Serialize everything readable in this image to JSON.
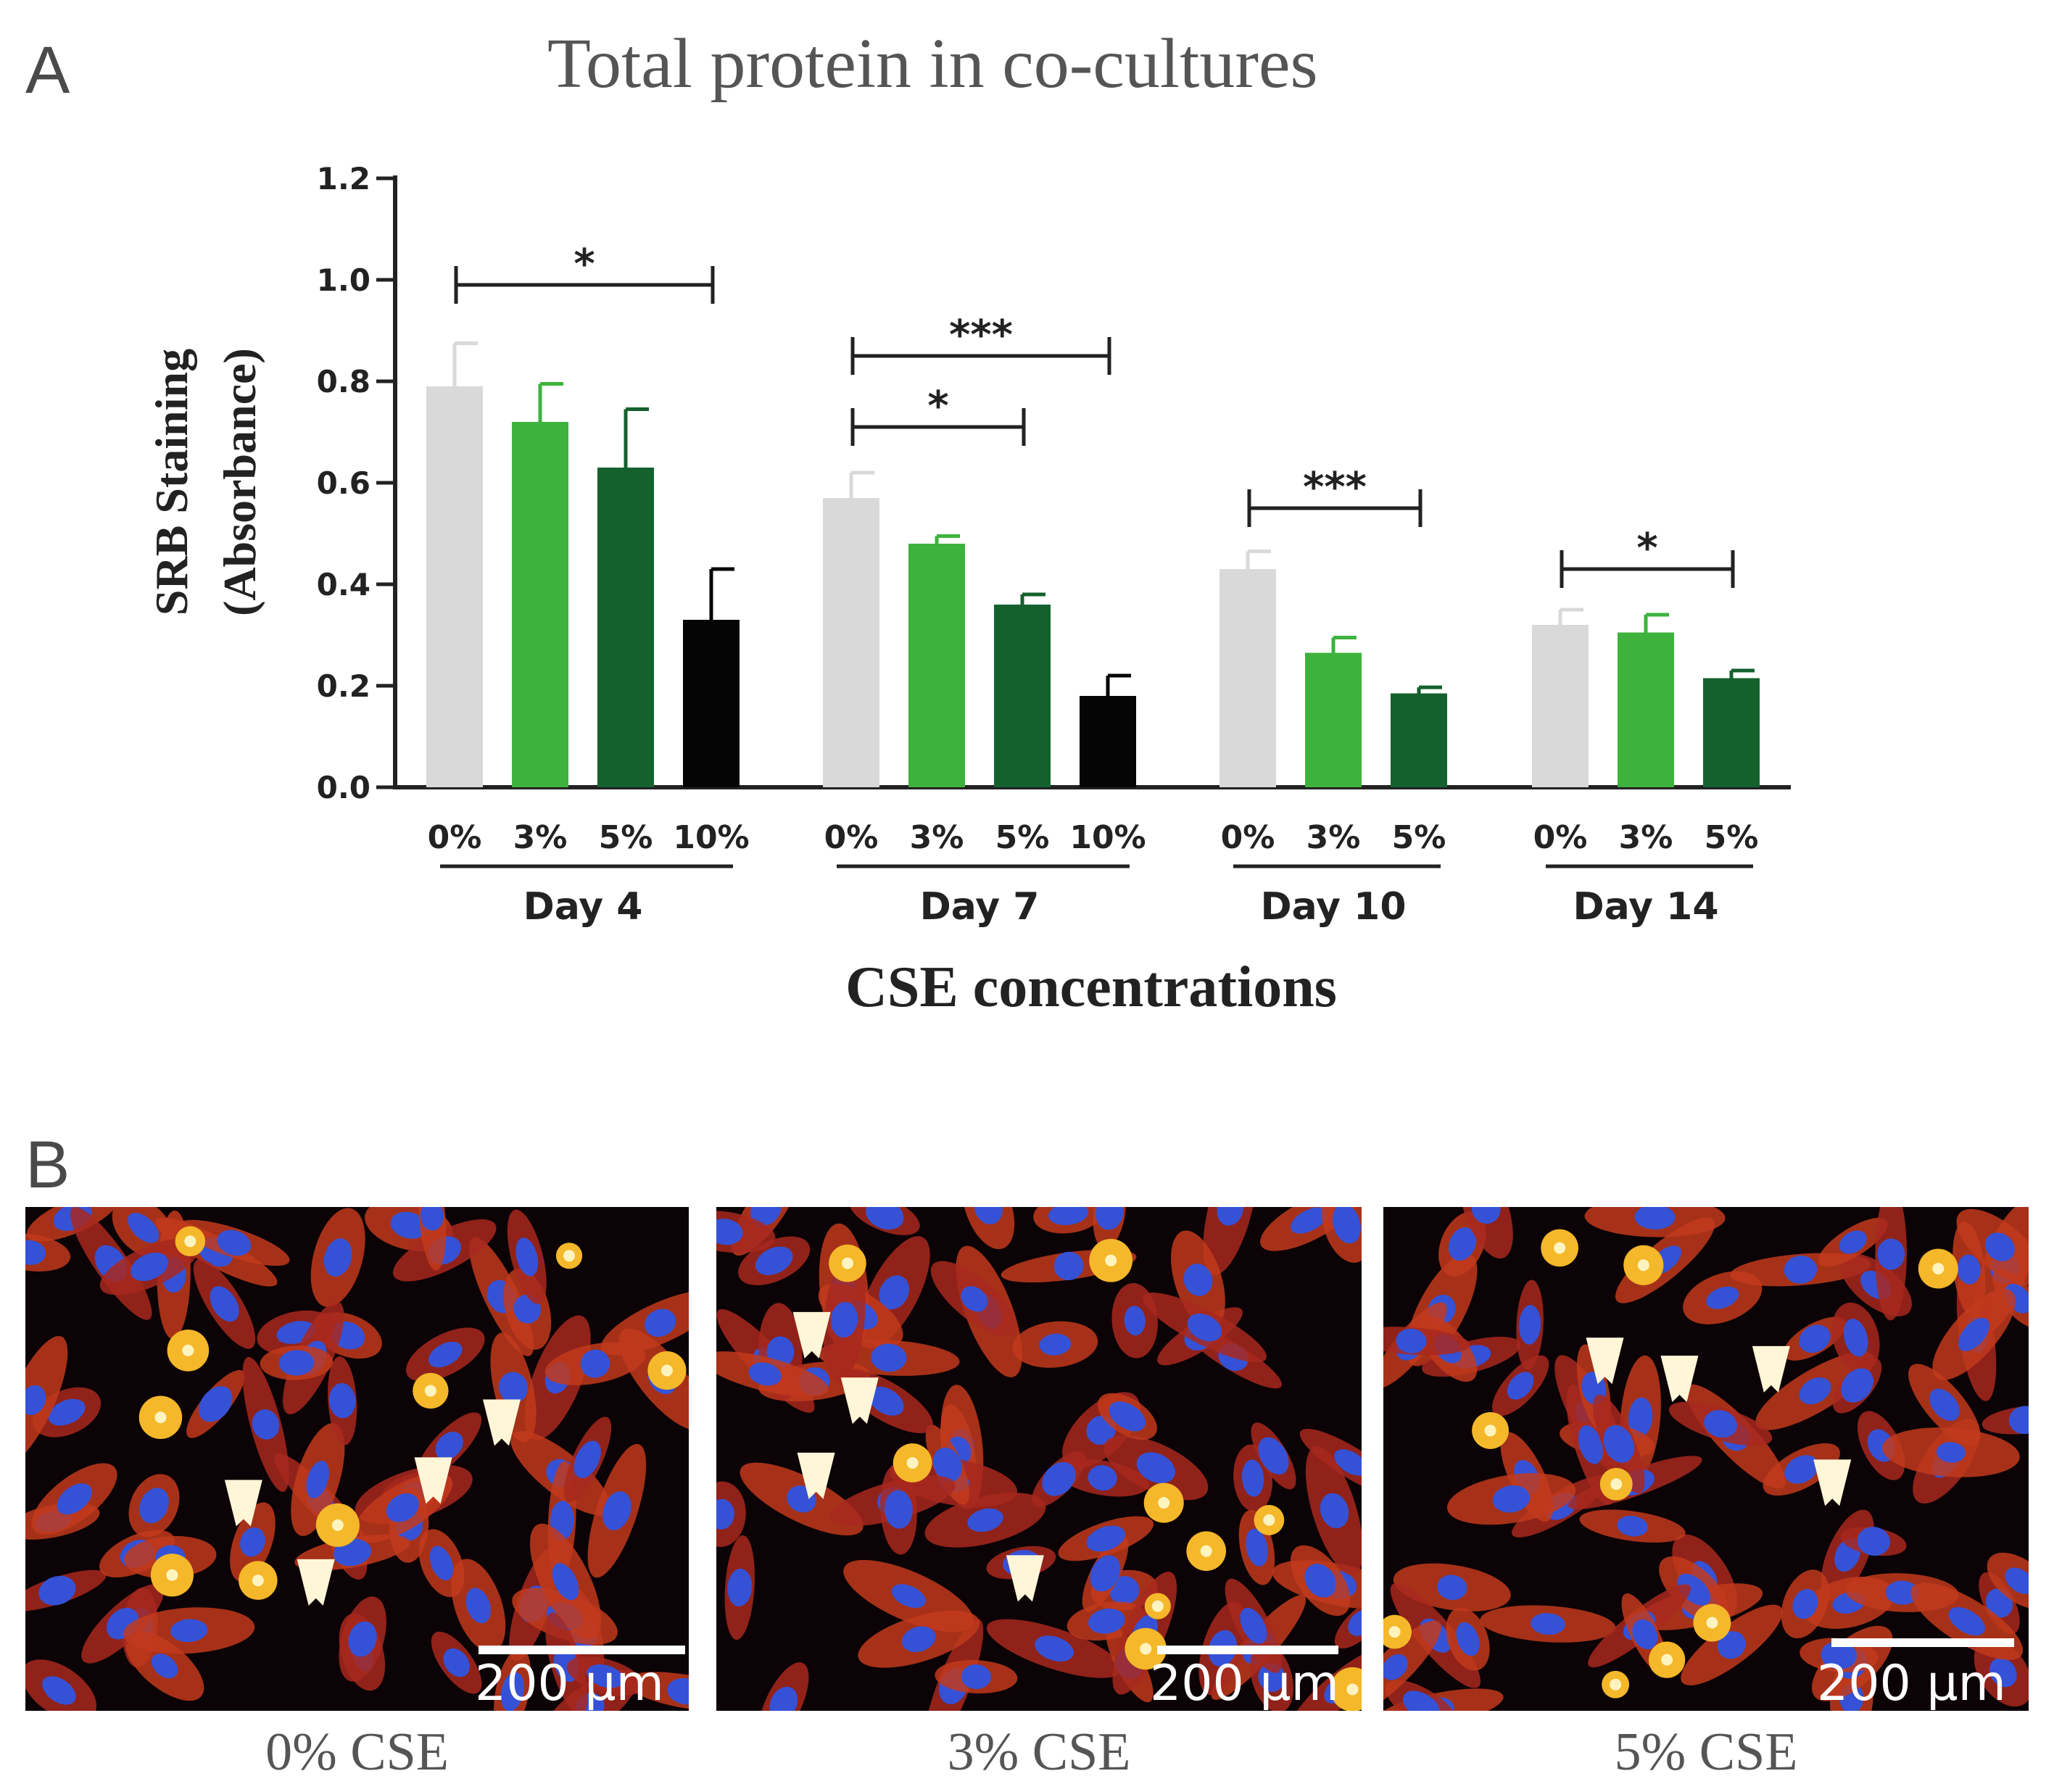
{
  "panel_a_letter": "A",
  "panel_b_letter": "B",
  "chart_data": {
    "type": "bar",
    "title": "Total protein in co-cultures",
    "ylabel_line1": "SRB Staining",
    "ylabel_line2": "(Absorbance)",
    "xlabel": "CSE concentrations",
    "ylim": [
      0,
      1.2
    ],
    "yticks": [
      "0.0",
      "0.2",
      "0.4",
      "0.6",
      "0.8",
      "1.0",
      "1.2"
    ],
    "grid": false,
    "legend": "none",
    "groups": [
      {
        "name": "Day 4",
        "bars": [
          {
            "label": "0%",
            "value": 0.79,
            "error": 0.085,
            "color": "#d9d9d9"
          },
          {
            "label": "3%",
            "value": 0.72,
            "error": 0.075,
            "color": "#3db33d"
          },
          {
            "label": "5%",
            "value": 0.63,
            "error": 0.115,
            "color": "#14612e"
          },
          {
            "label": "10%",
            "value": 0.33,
            "error": 0.1,
            "color": "#050505"
          }
        ],
        "significance": [
          {
            "from": "0%",
            "to": "10%",
            "stars": "*",
            "y": 0.99
          }
        ]
      },
      {
        "name": "Day 7",
        "bars": [
          {
            "label": "0%",
            "value": 0.57,
            "error": 0.05,
            "color": "#d9d9d9"
          },
          {
            "label": "3%",
            "value": 0.48,
            "error": 0.015,
            "color": "#3db33d"
          },
          {
            "label": "5%",
            "value": 0.36,
            "error": 0.02,
            "color": "#14612e"
          },
          {
            "label": "10%",
            "value": 0.18,
            "error": 0.04,
            "color": "#050505"
          }
        ],
        "significance": [
          {
            "from": "0%",
            "to": "10%",
            "stars": "***",
            "y": 0.85
          },
          {
            "from": "0%",
            "to": "5%",
            "stars": "*",
            "y": 0.71
          }
        ]
      },
      {
        "name": "Day 10",
        "bars": [
          {
            "label": "0%",
            "value": 0.43,
            "error": 0.035,
            "color": "#d9d9d9"
          },
          {
            "label": "3%",
            "value": 0.265,
            "error": 0.03,
            "color": "#3db33d"
          },
          {
            "label": "5%",
            "value": 0.185,
            "error": 0.012,
            "color": "#14612e"
          }
        ],
        "significance": [
          {
            "from": "0%",
            "to": "5%",
            "stars": "***",
            "y": 0.55
          }
        ]
      },
      {
        "name": "Day 14",
        "bars": [
          {
            "label": "0%",
            "value": 0.32,
            "error": 0.03,
            "color": "#d9d9d9"
          },
          {
            "label": "3%",
            "value": 0.305,
            "error": 0.035,
            "color": "#3db33d"
          },
          {
            "label": "5%",
            "value": 0.215,
            "error": 0.015,
            "color": "#14612e"
          }
        ],
        "significance": [
          {
            "from": "0%",
            "to": "5%",
            "stars": "*",
            "y": 0.43
          }
        ]
      }
    ]
  },
  "micrographs": [
    {
      "caption": "0% CSE",
      "scale_label": "200 µm"
    },
    {
      "caption": "3% CSE",
      "scale_label": "200 µm"
    },
    {
      "caption": "5% CSE",
      "scale_label": "200 µm"
    }
  ]
}
